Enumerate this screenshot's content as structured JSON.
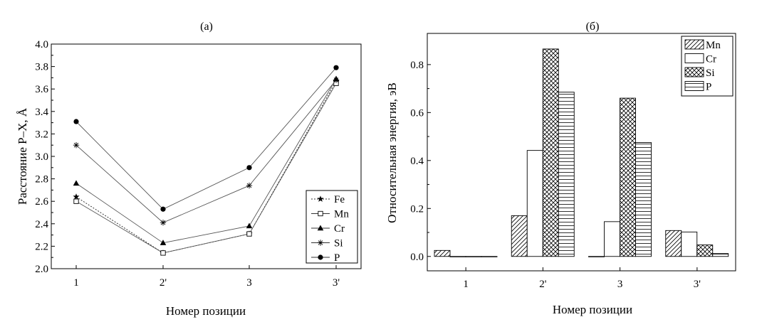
{
  "chart_data": [
    {
      "type": "line",
      "title": "(a)",
      "xlabel": "Номер позиции",
      "ylabel": "Расстояние P–X, Å",
      "categories": [
        "1",
        "2'",
        "3",
        "3'"
      ],
      "ylim": [
        2.0,
        4.0
      ],
      "yticks": [
        "2.0",
        "2.2",
        "2.4",
        "2.6",
        "2.8",
        "3.0",
        "3.2",
        "3.4",
        "3.6",
        "3.8",
        "4.0"
      ],
      "legend_position": "bottom-right",
      "series": [
        {
          "name": "Fe",
          "marker": "star",
          "line": "dotted",
          "values": [
            2.64,
            2.14,
            2.31,
            3.67
          ]
        },
        {
          "name": "Mn",
          "marker": "open-square",
          "line": "solid",
          "values": [
            2.6,
            2.14,
            2.31,
            3.65
          ]
        },
        {
          "name": "Cr",
          "marker": "filled-triangle",
          "line": "solid",
          "values": [
            2.76,
            2.23,
            2.38,
            3.69
          ]
        },
        {
          "name": "Si",
          "marker": "asterisk",
          "line": "solid",
          "values": [
            3.1,
            2.41,
            2.74,
            3.68
          ]
        },
        {
          "name": "P",
          "marker": "filled-circle",
          "line": "solid",
          "values": [
            3.31,
            2.53,
            2.9,
            3.79
          ]
        }
      ]
    },
    {
      "type": "bar",
      "title": "(б)",
      "xlabel": "Номер позиции",
      "ylabel": "Относительная энергия, эВ",
      "categories": [
        "1",
        "2'",
        "3",
        "3'"
      ],
      "ylim": [
        -0.06,
        0.93
      ],
      "yticks": [
        "0.0",
        "0.2",
        "0.4",
        "0.6",
        "0.8"
      ],
      "legend_position": "top-right",
      "series": [
        {
          "name": "Mn",
          "pattern": "diagonal-hatch",
          "values": [
            0.025,
            0.17,
            0.0,
            0.108
          ]
        },
        {
          "name": "Cr",
          "pattern": "empty",
          "values": [
            0.0,
            0.442,
            0.145,
            0.102
          ]
        },
        {
          "name": "Si",
          "pattern": "cross-hatch",
          "values": [
            0.0,
            0.865,
            0.66,
            0.048
          ]
        },
        {
          "name": "P",
          "pattern": "horizontal-lines",
          "values": [
            0.0,
            0.685,
            0.475,
            0.012
          ]
        }
      ]
    }
  ]
}
